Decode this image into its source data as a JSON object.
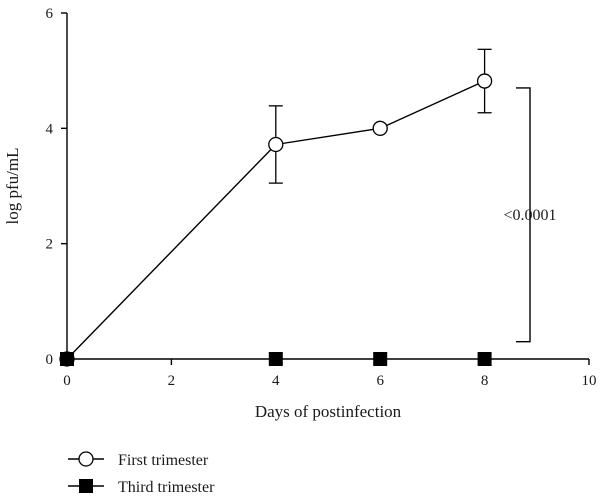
{
  "chart_data": {
    "type": "line",
    "xlabel": "Days of postinfection",
    "ylabel": "log pfu/mL",
    "xlim": [
      0,
      10
    ],
    "ylim": [
      0,
      6
    ],
    "xticks": [
      0,
      2,
      4,
      6,
      8,
      10
    ],
    "yticks": [
      0,
      2,
      4,
      6
    ],
    "grid": false,
    "legend_position": "bottom-left",
    "series": [
      {
        "name": "First trimester",
        "marker": "open-circle",
        "x": [
          0,
          4,
          6,
          8
        ],
        "y": [
          0,
          3.72,
          4.0,
          4.82
        ],
        "yerr": [
          0,
          0.67,
          0,
          0.55
        ]
      },
      {
        "name": "Third trimester",
        "marker": "filled-square",
        "x": [
          0,
          4,
          6,
          8
        ],
        "y": [
          0,
          0,
          0,
          0
        ],
        "yerr": [
          0,
          0,
          0,
          0
        ]
      }
    ],
    "annotation": {
      "text": "<0.0001",
      "y_range": [
        0.3,
        4.7
      ]
    }
  }
}
